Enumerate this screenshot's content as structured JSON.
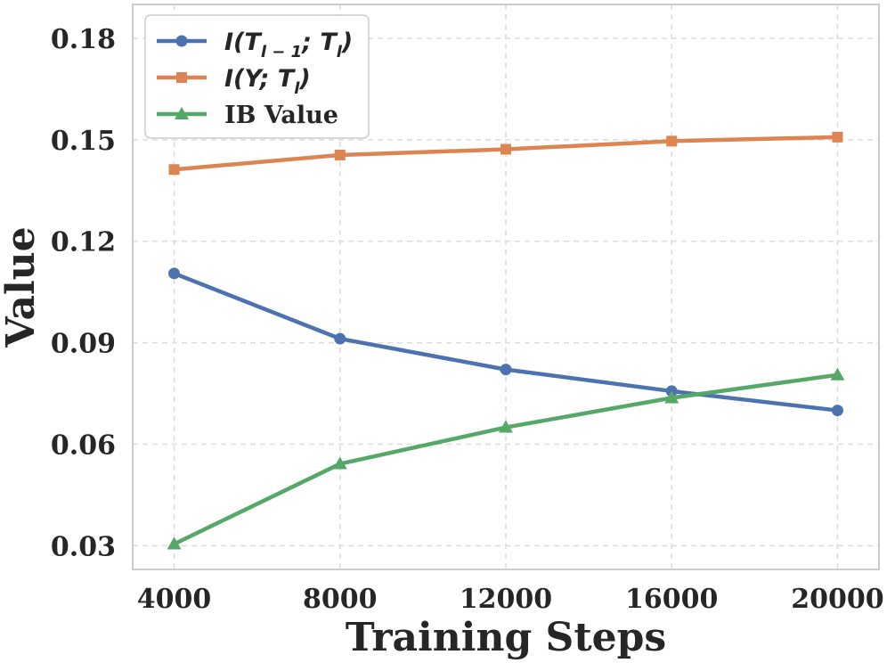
{
  "chart_data": {
    "type": "line",
    "x": [
      4000,
      8000,
      12000,
      16000,
      20000
    ],
    "xlabel": "Training Steps",
    "ylabel": "Value",
    "xlim": [
      3000,
      21000
    ],
    "ylim": [
      0.023,
      0.19
    ],
    "xticks": [
      "4000",
      "8000",
      "12000",
      "16000",
      "20000"
    ],
    "yticks": [
      "0.03",
      "0.06",
      "0.09",
      "0.12",
      "0.15",
      "0.18"
    ],
    "ytick_values": [
      0.03,
      0.06,
      0.09,
      0.12,
      0.15,
      0.18
    ],
    "grid": true,
    "legend_position": "top-left",
    "series": [
      {
        "name": "I(T_{l-1}; T_l)",
        "legend_main": "I(T",
        "legend_sub1": "l − 1",
        "legend_mid": "; T",
        "legend_sub2": "l",
        "legend_end": ")",
        "color": "#4c72b0",
        "marker": "circle",
        "values": [
          0.1105,
          0.0912,
          0.0821,
          0.0757,
          0.07
        ]
      },
      {
        "name": "I(Y; T_l)",
        "legend_main": "I(Y; T",
        "legend_sub1": "l",
        "legend_end": ")",
        "color": "#dd8452",
        "marker": "square",
        "values": [
          0.1412,
          0.1455,
          0.1472,
          0.1496,
          0.1508
        ]
      },
      {
        "name": "IB Value",
        "legend_main": "IB Value",
        "color": "#55a868",
        "marker": "triangle",
        "values": [
          0.0305,
          0.0542,
          0.065,
          0.0737,
          0.0805
        ]
      }
    ]
  }
}
